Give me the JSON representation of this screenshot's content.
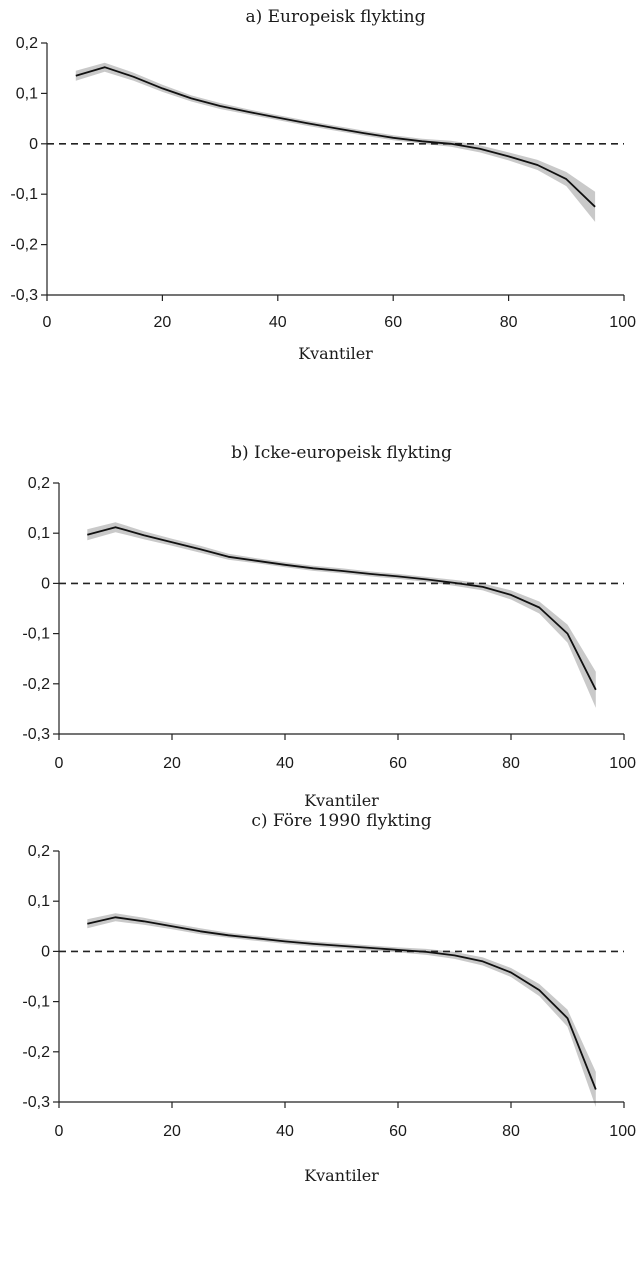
{
  "chart_data": [
    {
      "type": "line",
      "title": "a) Europeisk flykting",
      "xlabel": "Kvantiler",
      "ylabel": "",
      "xlim": [
        0,
        100
      ],
      "ylim": [
        -0.3,
        0.2
      ],
      "xticks": [
        0,
        20,
        40,
        60,
        80,
        100
      ],
      "xtick_labels": [
        "0",
        "20",
        "40",
        "60",
        "80",
        "100"
      ],
      "yticks": [
        0.2,
        0.1,
        0,
        -0.1,
        -0.2,
        -0.3
      ],
      "ytick_labels": [
        "0,2",
        "0,1",
        "0",
        "-0,1",
        "-0,2",
        "-0,3"
      ],
      "reference_line": 0,
      "x": [
        5,
        10,
        15,
        20,
        25,
        30,
        35,
        40,
        45,
        50,
        55,
        60,
        65,
        70,
        75,
        80,
        85,
        90,
        95
      ],
      "series": [
        {
          "values": [
            0.135,
            0.152,
            0.133,
            0.11,
            0.09,
            0.075,
            0.063,
            0.052,
            0.041,
            0.031,
            0.021,
            0.012,
            0.005,
            0.0,
            -0.01,
            -0.025,
            -0.042,
            -0.07,
            -0.125
          ],
          "lower": [
            0.125,
            0.143,
            0.125,
            0.103,
            0.084,
            0.069,
            0.058,
            0.047,
            0.036,
            0.026,
            0.016,
            0.007,
            0.0,
            -0.006,
            -0.017,
            -0.033,
            -0.052,
            -0.084,
            -0.155
          ],
          "upper": [
            0.145,
            0.161,
            0.141,
            0.117,
            0.096,
            0.081,
            0.068,
            0.057,
            0.046,
            0.036,
            0.026,
            0.017,
            0.01,
            0.006,
            -0.003,
            -0.017,
            -0.032,
            -0.056,
            -0.095
          ]
        }
      ]
    },
    {
      "type": "line",
      "title": "b) Icke-europeisk flykting",
      "xlabel": "Kvantiler",
      "ylabel": "",
      "xlim": [
        0,
        100
      ],
      "ylim": [
        -0.3,
        0.2
      ],
      "xticks": [
        0,
        20,
        40,
        60,
        80,
        100
      ],
      "xtick_labels": [
        "0",
        "20",
        "40",
        "60",
        "80",
        "100"
      ],
      "yticks": [
        0.2,
        0.1,
        0,
        -0.1,
        -0.2,
        -0.3
      ],
      "ytick_labels": [
        "0,2",
        "0,1",
        "0",
        "-0,1",
        "-0,2",
        "-0,3"
      ],
      "reference_line": 0,
      "x": [
        5,
        10,
        15,
        20,
        25,
        30,
        35,
        40,
        45,
        50,
        55,
        60,
        65,
        70,
        75,
        80,
        85,
        90,
        95
      ],
      "series": [
        {
          "values": [
            0.097,
            0.112,
            0.096,
            0.082,
            0.068,
            0.053,
            0.045,
            0.037,
            0.03,
            0.025,
            0.019,
            0.014,
            0.008,
            0.001,
            -0.007,
            -0.023,
            -0.048,
            -0.1,
            -0.212
          ],
          "lower": [
            0.086,
            0.102,
            0.088,
            0.075,
            0.061,
            0.047,
            0.04,
            0.032,
            0.025,
            0.02,
            0.014,
            0.009,
            0.003,
            -0.005,
            -0.014,
            -0.032,
            -0.06,
            -0.118,
            -0.248
          ],
          "upper": [
            0.108,
            0.122,
            0.104,
            0.089,
            0.075,
            0.059,
            0.05,
            0.042,
            0.035,
            0.03,
            0.024,
            0.019,
            0.013,
            0.007,
            0.0,
            -0.014,
            -0.036,
            -0.082,
            -0.176
          ]
        }
      ]
    },
    {
      "type": "line",
      "title": "c) Före 1990 flykting",
      "xlabel": "Kvantiler",
      "ylabel": "",
      "xlim": [
        0,
        100
      ],
      "ylim": [
        -0.3,
        0.2
      ],
      "xticks": [
        0,
        20,
        40,
        60,
        80,
        100
      ],
      "xtick_labels": [
        "0",
        "20",
        "40",
        "60",
        "80",
        "100"
      ],
      "yticks": [
        0.2,
        0.1,
        0,
        -0.1,
        -0.2,
        -0.3
      ],
      "ytick_labels": [
        "0,2",
        "0,1",
        "0",
        "-0,1",
        "-0,2",
        "-0,3"
      ],
      "reference_line": 0,
      "x": [
        5,
        10,
        15,
        20,
        25,
        30,
        35,
        40,
        45,
        50,
        55,
        60,
        65,
        70,
        75,
        80,
        85,
        90,
        95
      ],
      "series": [
        {
          "values": [
            0.055,
            0.068,
            0.06,
            0.05,
            0.04,
            0.032,
            0.026,
            0.02,
            0.015,
            0.011,
            0.007,
            0.003,
            -0.001,
            -0.008,
            -0.02,
            -0.042,
            -0.077,
            -0.133,
            -0.275
          ],
          "lower": [
            0.046,
            0.06,
            0.053,
            0.044,
            0.034,
            0.027,
            0.021,
            0.015,
            0.01,
            0.006,
            0.002,
            -0.002,
            -0.007,
            -0.015,
            -0.028,
            -0.051,
            -0.089,
            -0.15,
            -0.31
          ],
          "upper": [
            0.064,
            0.076,
            0.067,
            0.056,
            0.046,
            0.037,
            0.031,
            0.025,
            0.02,
            0.016,
            0.012,
            0.008,
            0.005,
            -0.001,
            -0.012,
            -0.033,
            -0.065,
            -0.116,
            -0.24
          ]
        }
      ]
    }
  ],
  "colors": {
    "line": "#111111",
    "band": "#c9c9c9",
    "axis": "#222222",
    "reference": "#222222"
  }
}
